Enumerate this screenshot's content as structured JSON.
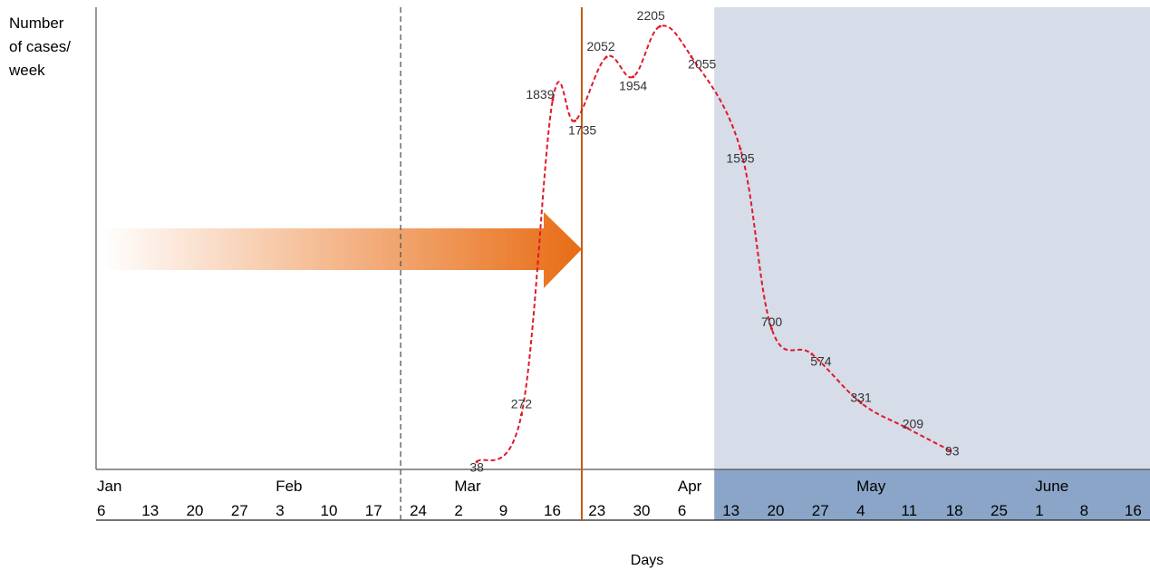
{
  "chart_data": {
    "type": "line",
    "ylabel": [
      "Number",
      "of cases/",
      "week"
    ],
    "xlabel": "Days",
    "months": [
      "Jan",
      "Feb",
      "Mar",
      "Apr",
      "May",
      "June"
    ],
    "days": [
      "6",
      "13",
      "20",
      "27",
      "3",
      "10",
      "17",
      "24",
      "2",
      "9",
      "16",
      "23",
      "30",
      "6",
      "13",
      "20",
      "27",
      "4",
      "11",
      "18",
      "25",
      "1",
      "8",
      "16"
    ],
    "ylim": [
      0,
      2300
    ],
    "series": [
      {
        "x": [
          8.4,
          9.4,
          10.1,
          10.6,
          11.3,
          11.9,
          12.5,
          13.2,
          14.3,
          15.0,
          15.9,
          17.0,
          18.0,
          19.0,
          20.0,
          21.0
        ],
        "values": [
          38,
          272,
          1839,
          1735,
          2052,
          1954,
          2205,
          2055,
          1595,
          700,
          574,
          331,
          209,
          93,
          null,
          null
        ],
        "labels": [
          "38",
          "272",
          "1839",
          "1735",
          "2052",
          "1954",
          "2205",
          "2055",
          "1595",
          "700",
          "574",
          "331",
          "209",
          "93"
        ]
      }
    ],
    "colors": {
      "line": "#e0192a",
      "shade": "#d6dce8",
      "axis_band": "#8aa5c8",
      "vline_solid": "#c55a11",
      "vline_dashed": "#555555",
      "arrow": "#e86c14"
    },
    "shaded_from_day_index": 14,
    "dashed_line_day": "24",
    "solid_line_x": 10.75,
    "arrow_tip_x": 10.75
  }
}
